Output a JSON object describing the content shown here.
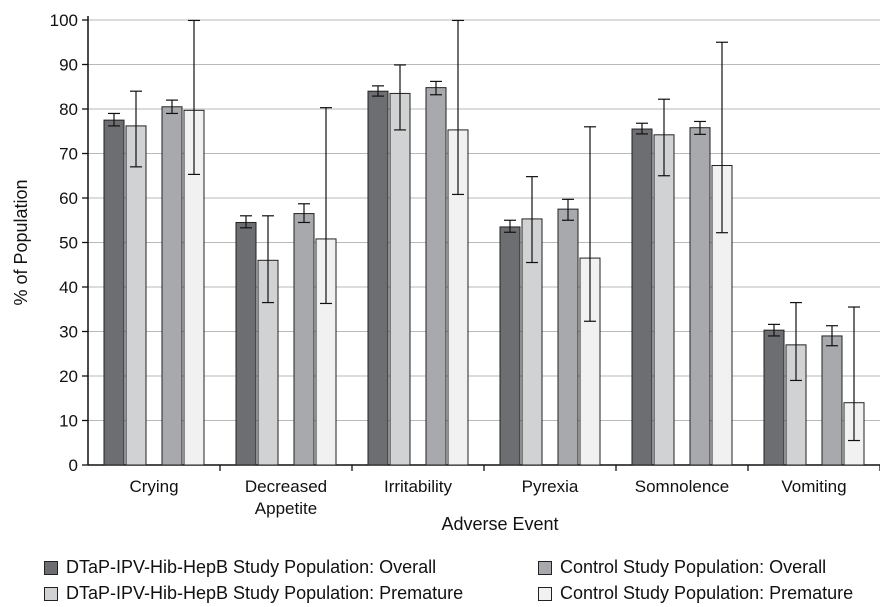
{
  "chart_data": {
    "type": "bar",
    "title": "",
    "xlabel": "Adverse Event",
    "ylabel": "% of Population",
    "ylim": [
      0,
      100
    ],
    "yticks": [
      0,
      10,
      20,
      30,
      40,
      50,
      60,
      70,
      80,
      90,
      100
    ],
    "grid": "horizontal",
    "legend_position": "bottom",
    "categories": [
      "Crying",
      "Decreased\nAppetite",
      "Irritability",
      "Pyrexia",
      "Somnolence",
      "Vomiting"
    ],
    "series": [
      {
        "name": "DTaP-IPV-Hib-HepB Study Population: Overall",
        "color": "#6d6e71",
        "values": [
          77.5,
          54.5,
          84.0,
          53.5,
          75.5,
          30.3
        ],
        "err_low": [
          76.2,
          53.3,
          82.9,
          52.3,
          74.4,
          29.0
        ],
        "err_high": [
          79.0,
          56.0,
          85.2,
          55.0,
          76.8,
          31.6
        ]
      },
      {
        "name": "DTaP-IPV-Hib-HepB Study Population: Premature",
        "color": "#d1d2d4",
        "values": [
          76.2,
          46.0,
          83.5,
          55.3,
          74.2,
          27.0
        ],
        "err_low": [
          67.0,
          36.5,
          75.3,
          45.5,
          65.0,
          19.0
        ],
        "err_high": [
          84.0,
          56.0,
          89.9,
          64.8,
          82.2,
          36.5
        ]
      },
      {
        "name": "Control Study Population: Overall",
        "color": "#a7a9ac",
        "values": [
          80.5,
          56.5,
          84.8,
          57.5,
          75.8,
          29.0
        ],
        "err_low": [
          79.0,
          54.5,
          83.2,
          55.0,
          74.3,
          26.8
        ],
        "err_high": [
          82.0,
          58.7,
          86.2,
          59.7,
          77.2,
          31.3
        ]
      },
      {
        "name": "Control Study Population: Premature",
        "color": "#f1f1f2",
        "values": [
          79.7,
          50.8,
          75.3,
          46.5,
          67.3,
          14.0
        ],
        "err_low": [
          65.3,
          36.3,
          60.8,
          32.3,
          52.2,
          5.5
        ],
        "err_high": [
          99.9,
          80.3,
          99.9,
          76.0,
          95.0,
          35.5
        ]
      }
    ]
  },
  "legend": {
    "items": [
      "DTaP-IPV-Hib-HepB Study Population: Overall",
      "Control Study Population: Overall",
      "DTaP-IPV-Hib-HepB Study Population: Premature",
      "Control Study Population: Premature"
    ],
    "colors": [
      "#6d6e71",
      "#a7a9ac",
      "#d1d2d4",
      "#f1f1f2"
    ]
  }
}
